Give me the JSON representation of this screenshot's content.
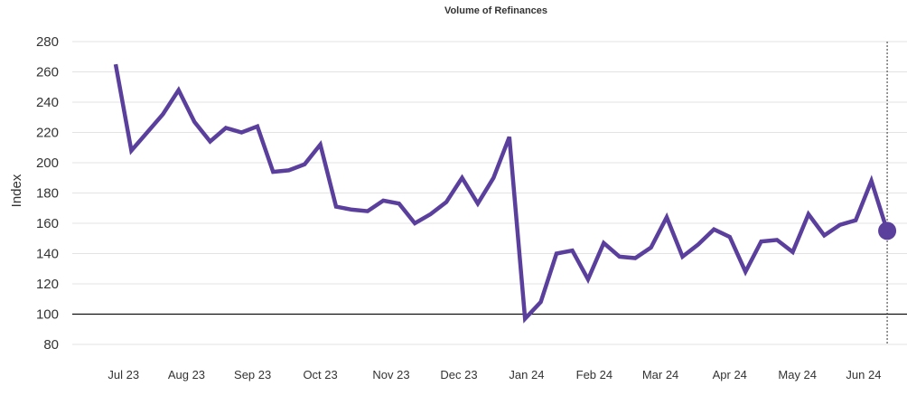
{
  "chart_data": {
    "type": "line",
    "title": "Volume of Refinances",
    "xlabel": "",
    "ylabel": "Index",
    "ylim": [
      80,
      280
    ],
    "yticks": [
      "280",
      "260",
      "240",
      "220",
      "200",
      "180",
      "160",
      "140",
      "120",
      "100",
      "80"
    ],
    "ytick_values": [
      280,
      260,
      240,
      220,
      200,
      180,
      160,
      140,
      120,
      100,
      80
    ],
    "xtick_labels": [
      "Jul 23",
      "Aug 23",
      "Sep 23",
      "Oct 23",
      "Nov 23",
      "Dec 23",
      "Jan 24",
      "Feb 24",
      "Mar 24",
      "Apr 24",
      "May 24",
      "Jun 24"
    ],
    "xtick_positions": [
      0.5,
      4.5,
      8.7,
      13.0,
      17.5,
      21.8,
      26.1,
      30.4,
      34.6,
      39.0,
      43.3,
      47.5
    ],
    "reference_line": 100,
    "grid": true,
    "line_color": "#5b3f9c",
    "series": [
      {
        "name": "Volume of Refinances",
        "x": [
          0,
          1,
          2,
          3,
          4,
          5,
          6,
          7,
          8,
          9,
          10,
          11,
          12,
          13,
          14,
          15,
          16,
          17,
          18,
          19,
          20,
          21,
          22,
          23,
          24,
          25,
          26,
          27,
          28,
          29,
          30,
          31,
          32,
          33,
          34,
          35,
          36,
          37,
          38,
          39,
          40,
          41,
          42,
          43,
          44,
          45,
          46,
          47,
          48,
          49
        ],
        "values": [
          265,
          208,
          220,
          232,
          248,
          227,
          214,
          223,
          220,
          224,
          194,
          195,
          199,
          212,
          171,
          169,
          168,
          175,
          173,
          160,
          166,
          174,
          190,
          173,
          190,
          217,
          97,
          108,
          140,
          142,
          123,
          147,
          138,
          137,
          144,
          164,
          138,
          146,
          156,
          151,
          128,
          148,
          149,
          141,
          166,
          152,
          159,
          162,
          188,
          155
        ]
      }
    ],
    "highlight_point": {
      "x": 49,
      "value": 155
    }
  }
}
